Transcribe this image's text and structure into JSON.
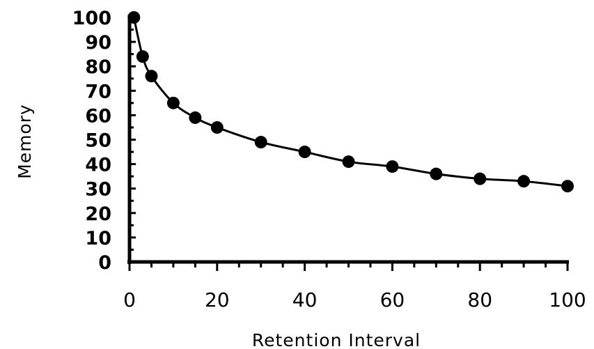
{
  "chart_data": {
    "type": "line",
    "title": "",
    "xlabel": "Retention Interval",
    "ylabel": "Memory",
    "xlim": [
      0,
      100
    ],
    "ylim": [
      0,
      100
    ],
    "x_ticks": [
      "0",
      "20",
      "40",
      "60",
      "80",
      "100"
    ],
    "y_ticks": [
      "0",
      "10",
      "20",
      "30",
      "40",
      "50",
      "60",
      "70",
      "80",
      "90",
      "100"
    ],
    "grid": false,
    "legend": "none",
    "series": [
      {
        "x": [
          1,
          3,
          5,
          10,
          15,
          20,
          30,
          40,
          50,
          60,
          70,
          80,
          90,
          100
        ],
        "y": [
          100,
          84,
          76,
          65,
          59,
          55,
          49,
          45,
          41,
          39,
          36,
          34,
          33,
          31
        ],
        "marker": "circle",
        "color": "#000000"
      }
    ]
  }
}
